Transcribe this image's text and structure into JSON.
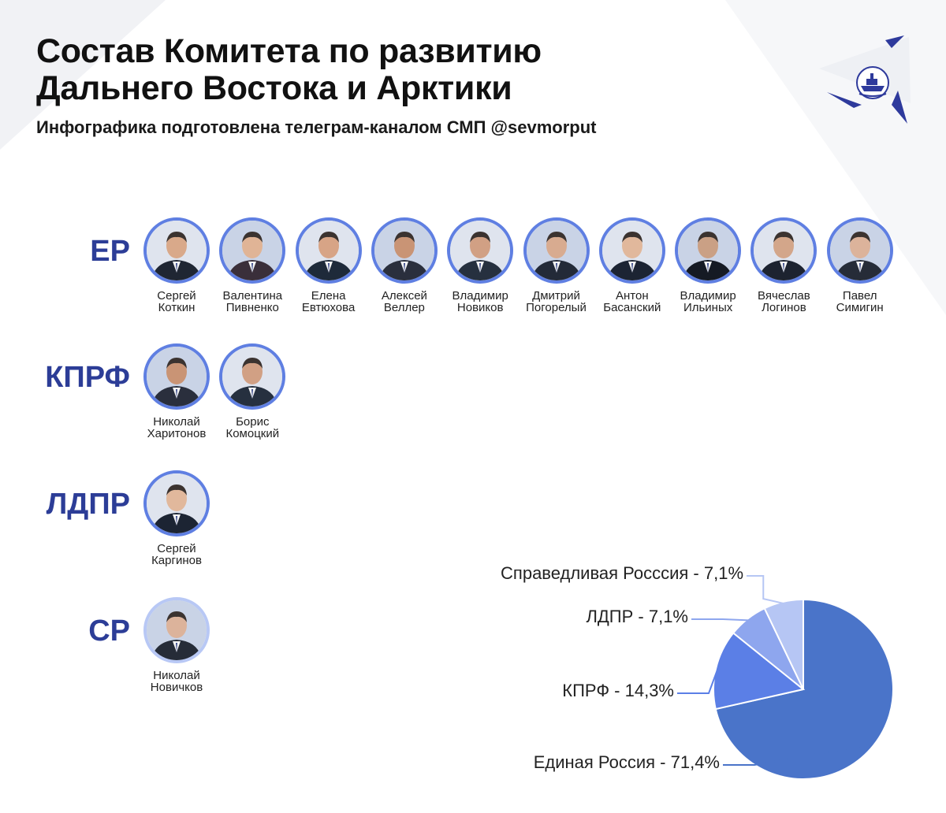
{
  "header": {
    "title_line1": "Состав Комитета по развитию",
    "title_line2": "Дальнего Востока и Арктики",
    "subtitle": "Инфографика подготовлена телеграм-каналом СМП @sevmorput"
  },
  "colors": {
    "party_label": "#2c3d97",
    "avatar_ring": "#5f7fe2",
    "accent_dark": "#2e3a9c"
  },
  "logo": {
    "icon": "ship-emblem-icon"
  },
  "parties": [
    {
      "label": "ЕР",
      "members": [
        {
          "first": "Сергей",
          "last": "Коткин"
        },
        {
          "first": "Валентина",
          "last": "Пивненко"
        },
        {
          "first": "Елена",
          "last": "Евтюхова"
        },
        {
          "first": "Алексей",
          "last": "Веллер"
        },
        {
          "first": "Владимир",
          "last": "Новиков"
        },
        {
          "first": "Дмитрий",
          "last": "Погорелый"
        },
        {
          "first": "Антон",
          "last": "Басанский"
        },
        {
          "first": "Владимир",
          "last": "Ильиных"
        },
        {
          "first": "Вячеслав",
          "last": "Логинов"
        },
        {
          "first": "Павел",
          "last": "Симигин"
        }
      ]
    },
    {
      "label": "КПРФ",
      "members": [
        {
          "first": "Николай",
          "last": "Харитонов"
        },
        {
          "first": "Борис",
          "last": "Комоцкий"
        }
      ]
    },
    {
      "label": "ЛДПР",
      "members": [
        {
          "first": "Сергей",
          "last": "Каргинов"
        }
      ]
    },
    {
      "label": "СР",
      "members": [
        {
          "first": "Николай",
          "last": "Новичков"
        }
      ]
    }
  ],
  "chart_data": {
    "type": "pie",
    "title": "",
    "start_angle_deg": 0,
    "direction": "clockwise",
    "slices": [
      {
        "label": "Единая Россия - 71,4%",
        "value": 71.4,
        "color": "#4a74c9"
      },
      {
        "label": "КПРФ - 14,3%",
        "value": 14.3,
        "color": "#5b7fe6"
      },
      {
        "label": "ЛДПР - 7,1%",
        "value": 7.1,
        "color": "#8ea6ee"
      },
      {
        "label": "Справедливая Росссия - 7,1%",
        "value": 7.1,
        "color": "#b6c6f4"
      }
    ]
  }
}
